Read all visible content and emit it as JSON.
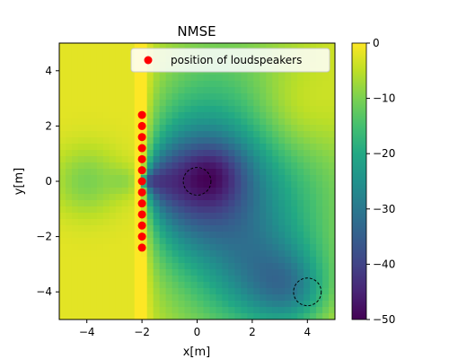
{
  "chart_data": {
    "type": "heatmap",
    "title": "NMSE",
    "xlabel": "x[m]",
    "ylabel": "y[m]",
    "xlim": [
      -5,
      5
    ],
    "ylim": [
      -5,
      5
    ],
    "xticks": [
      -4,
      -2,
      0,
      2,
      4
    ],
    "yticks": [
      4,
      2,
      0,
      -2,
      -4
    ],
    "colorbar": {
      "range": [
        -50,
        0
      ],
      "ticks": [
        0,
        -10,
        -20,
        -30,
        -40,
        -50
      ],
      "colormap": "viridis"
    },
    "legend": {
      "placement": "upper-right",
      "label": "position of loudspeakers",
      "marker_color": "#ff0000"
    },
    "loudspeakers": {
      "x": [
        -2,
        -2,
        -2,
        -2,
        -2,
        -2,
        -2,
        -2,
        -2,
        -2,
        -2,
        -2,
        -2
      ],
      "y": [
        2.4,
        2.0,
        1.6,
        1.2,
        0.8,
        0.4,
        0.0,
        -0.4,
        -0.8,
        -1.2,
        -1.6,
        -2.0,
        -2.4
      ]
    },
    "control_regions": [
      {
        "cx": 0,
        "cy": 0,
        "r": 0.5
      },
      {
        "cx": 4,
        "cy": -4,
        "r": 0.5
      }
    ]
  }
}
